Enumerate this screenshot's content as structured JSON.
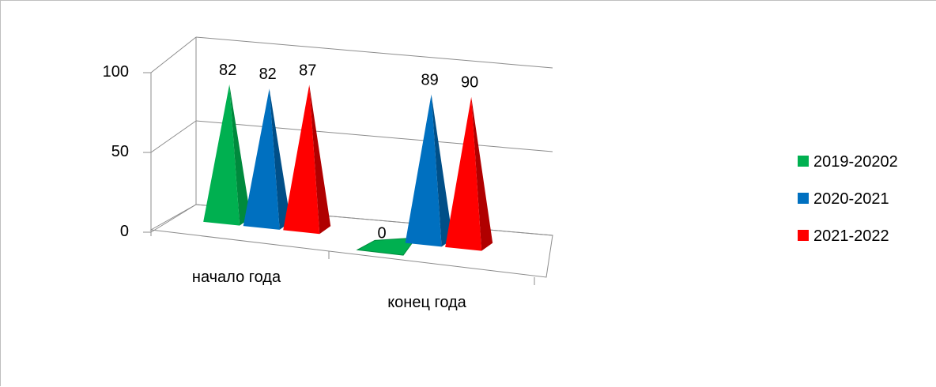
{
  "chart_data": {
    "type": "bar",
    "bar_shape": "3d-pyramid",
    "categories": [
      "начало года",
      "конец года"
    ],
    "series": [
      {
        "name": "2019-20202",
        "values": [
          82,
          0
        ],
        "color": "#00B050",
        "shade": "#008A3D"
      },
      {
        "name": "2020-2021",
        "values": [
          82,
          89
        ],
        "color": "#0070C0",
        "shade": "#004F88"
      },
      {
        "name": "2021-2022",
        "values": [
          87,
          90
        ],
        "color": "#FF0000",
        "shade": "#B00000"
      }
    ],
    "y_ticks": [
      "0",
      "50",
      "100"
    ],
    "ylim": [
      0,
      100
    ],
    "grid": true,
    "legend_position": "right",
    "title": "",
    "xlabel": "",
    "ylabel": ""
  }
}
